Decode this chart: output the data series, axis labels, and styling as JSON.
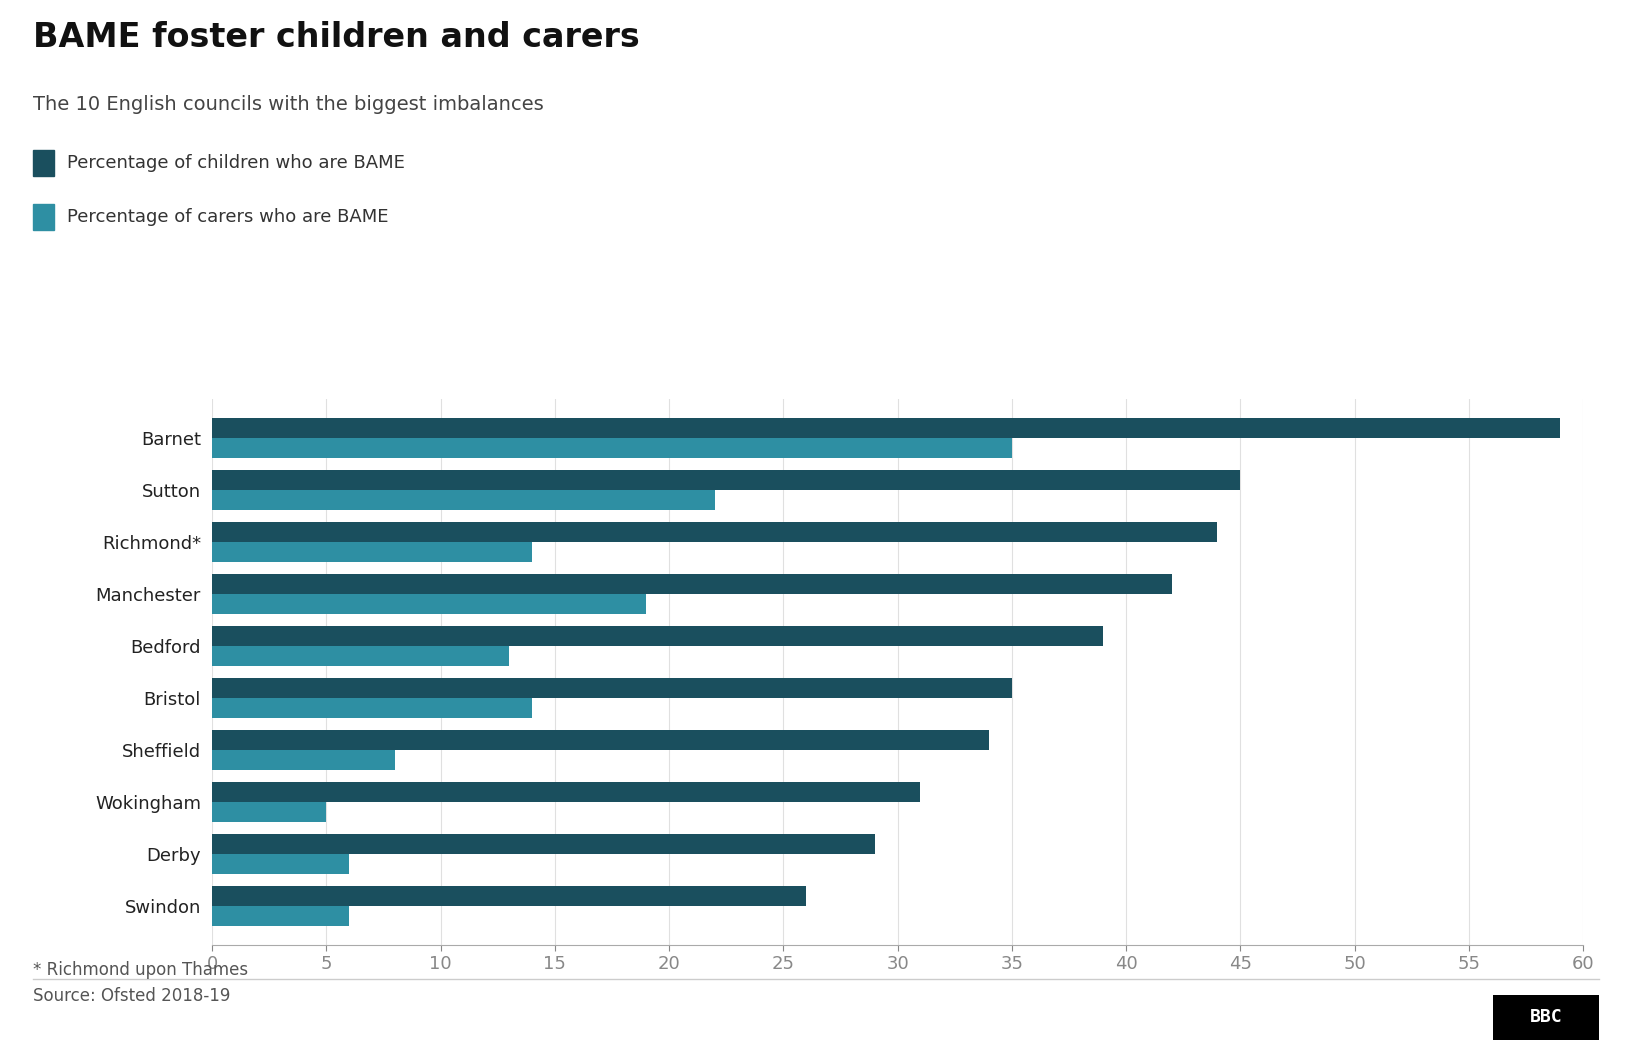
{
  "title": "BAME foster children and carers",
  "subtitle": "The 10 English councils with the biggest imbalances",
  "legend": [
    "Percentage of children who are BAME",
    "Percentage of carers who are BAME"
  ],
  "color_children": "#1a4f5e",
  "color_carers": "#2e8fa3",
  "councils": [
    "Barnet",
    "Sutton",
    "Richmond*",
    "Manchester",
    "Bedford",
    "Bristol",
    "Sheffield",
    "Wokingham",
    "Derby",
    "Swindon"
  ],
  "children_pct": [
    59,
    45,
    44,
    42,
    39,
    35,
    34,
    31,
    29,
    26
  ],
  "carers_pct": [
    35,
    22,
    14,
    19,
    13,
    14,
    8,
    5,
    6,
    6
  ],
  "xlim": [
    0,
    60
  ],
  "xticks": [
    0,
    5,
    10,
    15,
    20,
    25,
    30,
    35,
    40,
    45,
    50,
    55,
    60
  ],
  "footnote": "* Richmond upon Thames",
  "source": "Source: Ofsted 2018-19",
  "background_color": "#ffffff",
  "bar_height": 0.38,
  "title_fontsize": 24,
  "subtitle_fontsize": 14,
  "legend_fontsize": 13,
  "tick_fontsize": 13,
  "label_fontsize": 13,
  "footnote_fontsize": 12,
  "source_fontsize": 12
}
